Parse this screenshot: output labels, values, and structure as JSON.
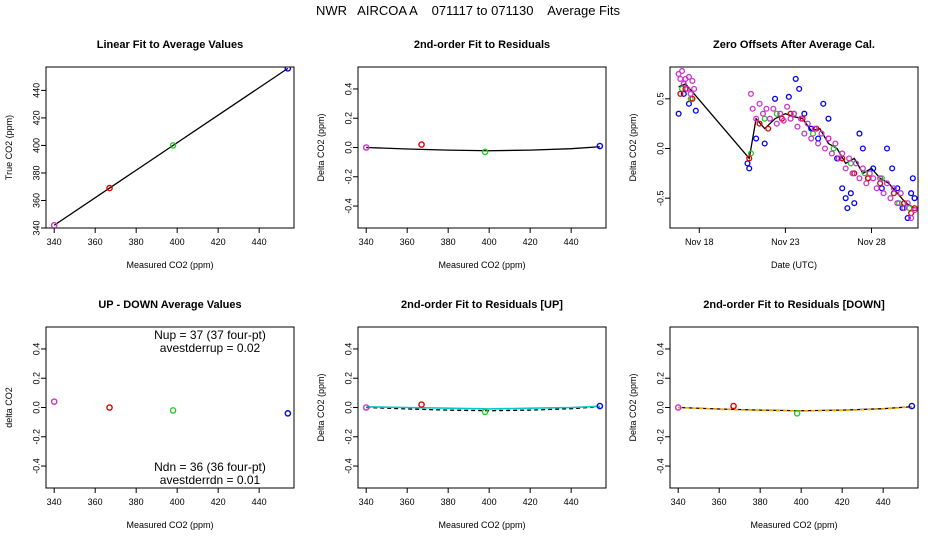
{
  "title": "NWR   AIRCOA A    071117 to 071130    Average Fits",
  "colors": {
    "purple": "#cc33cc",
    "red": "#dd0000",
    "green": "#22cc22",
    "blue": "#0000ee",
    "cyan": "#00cccc",
    "orange": "#ffaa00",
    "black": "#000000"
  },
  "chart_data": [
    {
      "type": "scatter",
      "title": "Linear Fit to Average Values",
      "xlabel": "Measured CO2 (ppm)",
      "ylabel": "True CO2 (ppm)",
      "xlim": [
        336,
        457
      ],
      "ylim": [
        340,
        457
      ],
      "xticks": [
        340,
        360,
        380,
        400,
        420,
        440
      ],
      "yticks": [
        340,
        360,
        380,
        400,
        420,
        440
      ],
      "points": [
        {
          "x": 340,
          "y": 342,
          "color": "purple"
        },
        {
          "x": 367,
          "y": 369,
          "color": "red"
        },
        {
          "x": 398,
          "y": 400,
          "color": "green"
        },
        {
          "x": 454,
          "y": 456,
          "color": "blue"
        }
      ],
      "lines": [
        {
          "x": [
            340,
            454
          ],
          "y": [
            342,
            456
          ],
          "color": "black"
        }
      ]
    },
    {
      "type": "scatter",
      "title": "2nd-order Fit to Residuals",
      "xlabel": "Measured CO2 (ppm)",
      "ylabel": "Delta CO2 (ppm)",
      "xlim": [
        336,
        457
      ],
      "ylim": [
        -0.55,
        0.55
      ],
      "xticks": [
        340,
        360,
        380,
        400,
        420,
        440
      ],
      "yticks": [
        -0.4,
        -0.2,
        0.0,
        0.2,
        0.4
      ],
      "points": [
        {
          "x": 340,
          "y": 0.0,
          "color": "purple"
        },
        {
          "x": 367,
          "y": 0.02,
          "color": "red"
        },
        {
          "x": 398,
          "y": -0.03,
          "color": "green"
        },
        {
          "x": 454,
          "y": 0.01,
          "color": "blue"
        }
      ],
      "lines": [
        {
          "x": [
            340,
            360,
            380,
            400,
            420,
            440,
            454
          ],
          "y": [
            0.0,
            -0.01,
            -0.018,
            -0.022,
            -0.018,
            -0.008,
            0.005
          ],
          "color": "black"
        }
      ]
    },
    {
      "type": "scatter",
      "title": "Zero Offsets After Average Cal.",
      "xlabel": "Date (UTC)",
      "ylabel": "Delta CO2 (ppm)",
      "xlim": [
        16.3,
        30.7
      ],
      "ylim": [
        -0.8,
        0.82
      ],
      "xticks": [
        18,
        23,
        28
      ],
      "xticklabels": [
        "Nov 18",
        "Nov 23",
        "Nov 28"
      ],
      "yticks": [
        -0.5,
        0.0,
        0.5
      ],
      "series": [
        {
          "color": "blue",
          "points": [
            [
              16.8,
              0.35
            ],
            [
              17.1,
              0.55
            ],
            [
              17.4,
              0.45
            ],
            [
              17.8,
              0.38
            ],
            [
              20.8,
              -0.15
            ],
            [
              20.9,
              -0.2
            ],
            [
              21.3,
              0.1
            ],
            [
              21.8,
              0.05
            ],
            [
              22.4,
              0.5
            ],
            [
              23.2,
              0.52
            ],
            [
              23.6,
              0.7
            ],
            [
              23.8,
              0.6
            ],
            [
              24.1,
              0.35
            ],
            [
              24.5,
              0.2
            ],
            [
              24.9,
              0.1
            ],
            [
              25.2,
              0.45
            ],
            [
              25.5,
              0.3
            ],
            [
              26.0,
              -0.1
            ],
            [
              26.3,
              -0.4
            ],
            [
              26.5,
              -0.5
            ],
            [
              26.6,
              -0.6
            ],
            [
              26.8,
              -0.45
            ],
            [
              27.0,
              -0.55
            ],
            [
              27.3,
              0.15
            ],
            [
              27.5,
              0.0
            ],
            [
              27.8,
              -0.3
            ],
            [
              28.1,
              -0.2
            ],
            [
              28.6,
              -0.4
            ],
            [
              28.9,
              0.0
            ],
            [
              29.2,
              -0.2
            ],
            [
              29.5,
              -0.4
            ],
            [
              29.8,
              -0.6
            ],
            [
              30.1,
              -0.7
            ],
            [
              30.3,
              -0.45
            ],
            [
              30.4,
              -0.3
            ],
            [
              30.5,
              -0.5
            ]
          ]
        },
        {
          "color": "green",
          "points": [
            [
              17.0,
              0.6
            ],
            [
              17.5,
              0.5
            ],
            [
              21.0,
              -0.05
            ],
            [
              21.8,
              0.3
            ],
            [
              22.5,
              0.35
            ],
            [
              23.5,
              0.35
            ],
            [
              24.6,
              0.15
            ],
            [
              25.8,
              0.0
            ],
            [
              26.8,
              -0.15
            ],
            [
              27.6,
              -0.25
            ],
            [
              28.6,
              -0.3
            ],
            [
              29.6,
              -0.55
            ],
            [
              30.2,
              -0.6
            ]
          ]
        },
        {
          "color": "red",
          "points": [
            [
              16.9,
              0.55
            ],
            [
              17.2,
              0.6
            ],
            [
              17.6,
              0.5
            ],
            [
              20.9,
              -0.1
            ],
            [
              21.5,
              0.25
            ],
            [
              22.0,
              0.2
            ],
            [
              22.8,
              0.3
            ],
            [
              23.3,
              0.35
            ],
            [
              24.0,
              0.3
            ],
            [
              24.8,
              0.2
            ],
            [
              25.5,
              0.1
            ],
            [
              26.3,
              -0.1
            ],
            [
              27.0,
              -0.25
            ],
            [
              27.8,
              -0.3
            ],
            [
              28.5,
              -0.35
            ],
            [
              29.3,
              -0.45
            ],
            [
              29.9,
              -0.55
            ],
            [
              30.3,
              -0.65
            ],
            [
              30.5,
              -0.6
            ]
          ]
        },
        {
          "color": "purple",
          "points": [
            [
              16.8,
              0.75
            ],
            [
              16.9,
              0.7
            ],
            [
              17.0,
              0.78
            ],
            [
              17.1,
              0.65
            ],
            [
              17.2,
              0.7
            ],
            [
              17.3,
              0.6
            ],
            [
              17.4,
              0.72
            ],
            [
              17.5,
              0.55
            ],
            [
              17.6,
              0.68
            ],
            [
              17.7,
              0.6
            ],
            [
              21.0,
              0.55
            ],
            [
              21.1,
              0.4
            ],
            [
              21.3,
              0.3
            ],
            [
              21.5,
              0.45
            ],
            [
              21.7,
              0.35
            ],
            [
              21.9,
              0.4
            ],
            [
              22.1,
              0.3
            ],
            [
              22.3,
              0.4
            ],
            [
              22.5,
              0.25
            ],
            [
              22.7,
              0.35
            ],
            [
              22.9,
              0.28
            ],
            [
              23.1,
              0.42
            ],
            [
              23.3,
              0.3
            ],
            [
              23.5,
              0.35
            ],
            [
              23.7,
              0.22
            ],
            [
              23.9,
              0.3
            ],
            [
              24.1,
              0.15
            ],
            [
              24.3,
              0.25
            ],
            [
              24.5,
              0.1
            ],
            [
              24.7,
              0.2
            ],
            [
              24.9,
              0.05
            ],
            [
              25.1,
              0.15
            ],
            [
              25.3,
              0.0
            ],
            [
              25.5,
              0.1
            ],
            [
              25.7,
              -0.05
            ],
            [
              25.9,
              0.05
            ],
            [
              26.1,
              -0.1
            ],
            [
              26.3,
              -0.05
            ],
            [
              26.5,
              -0.2
            ],
            [
              26.7,
              -0.1
            ],
            [
              26.9,
              -0.25
            ],
            [
              27.1,
              -0.15
            ],
            [
              27.3,
              -0.3
            ],
            [
              27.5,
              -0.2
            ],
            [
              27.7,
              -0.35
            ],
            [
              27.9,
              -0.25
            ],
            [
              28.1,
              -0.3
            ],
            [
              28.3,
              -0.4
            ],
            [
              28.5,
              -0.3
            ],
            [
              28.7,
              -0.45
            ],
            [
              28.9,
              -0.35
            ],
            [
              29.1,
              -0.5
            ],
            [
              29.3,
              -0.4
            ],
            [
              29.5,
              -0.55
            ],
            [
              29.7,
              -0.45
            ],
            [
              29.9,
              -0.6
            ],
            [
              30.1,
              -0.55
            ],
            [
              30.3,
              -0.7
            ],
            [
              30.5,
              -0.62
            ]
          ]
        }
      ],
      "lines": [
        {
          "x": [
            16.8,
            17.2,
            17.7,
            20.9,
            21.3,
            21.8,
            22.4,
            23.0,
            23.5,
            24.0,
            24.5,
            25.0,
            25.5,
            26.0,
            26.5,
            27.0,
            27.5,
            28.0,
            28.5,
            29.0,
            29.5,
            30.0,
            30.5
          ],
          "y": [
            0.62,
            0.65,
            0.55,
            -0.1,
            0.3,
            0.2,
            0.3,
            0.35,
            0.32,
            0.3,
            0.18,
            0.2,
            0.05,
            0.0,
            -0.15,
            -0.1,
            -0.25,
            -0.2,
            -0.3,
            -0.35,
            -0.45,
            -0.55,
            -0.6
          ],
          "color": "black"
        }
      ]
    },
    {
      "type": "scatter",
      "title": "UP - DOWN Average Values",
      "xlabel": "Measured CO2 (ppm)",
      "ylabel": "delta CO2",
      "xlim": [
        336,
        457
      ],
      "ylim": [
        -0.55,
        0.55
      ],
      "xticks": [
        340,
        360,
        380,
        400,
        420,
        440
      ],
      "yticks": [
        -0.4,
        -0.2,
        0.0,
        0.2,
        0.4
      ],
      "points": [
        {
          "x": 340,
          "y": 0.04,
          "color": "purple"
        },
        {
          "x": 367,
          "y": 0.0,
          "color": "red"
        },
        {
          "x": 398,
          "y": -0.02,
          "color": "green"
        },
        {
          "x": 454,
          "y": -0.04,
          "color": "blue"
        }
      ],
      "annotations": {
        "top1": "Nup = 37 (37 four-pt)",
        "top2": "avestderrup =  0.02",
        "bottom1": "Ndn = 36 (36 four-pt)",
        "bottom2": "avestderrdn =  0.01"
      }
    },
    {
      "type": "scatter",
      "title": "2nd-order Fit to Residuals [UP]",
      "xlabel": "Measured CO2 (ppm)",
      "ylabel": "Delta CO2 (ppm)",
      "xlim": [
        336,
        457
      ],
      "ylim": [
        -0.55,
        0.55
      ],
      "xticks": [
        340,
        360,
        380,
        400,
        420,
        440
      ],
      "yticks": [
        -0.4,
        -0.2,
        0.0,
        0.2,
        0.4
      ],
      "points": [
        {
          "x": 340,
          "y": 0.0,
          "color": "purple"
        },
        {
          "x": 367,
          "y": 0.02,
          "color": "red"
        },
        {
          "x": 398,
          "y": -0.03,
          "color": "green"
        },
        {
          "x": 454,
          "y": 0.01,
          "color": "blue"
        }
      ],
      "lines": [
        {
          "x": [
            340,
            360,
            380,
            400,
            420,
            440,
            454
          ],
          "y": [
            0.0,
            -0.01,
            -0.018,
            -0.022,
            -0.018,
            -0.008,
            0.005
          ],
          "color": "black",
          "dash": true
        },
        {
          "x": [
            340,
            360,
            380,
            400,
            420,
            440,
            454
          ],
          "y": [
            0.005,
            0.0,
            -0.005,
            -0.01,
            -0.005,
            0.0,
            0.008
          ],
          "color": "cyan"
        }
      ]
    },
    {
      "type": "scatter",
      "title": "2nd-order Fit to Residuals [DOWN]",
      "xlabel": "Measured CO2 (ppm)",
      "ylabel": "Delta CO2 (ppm)",
      "xlim": [
        336,
        457
      ],
      "ylim": [
        -0.55,
        0.55
      ],
      "xticks": [
        340,
        360,
        380,
        400,
        420,
        440
      ],
      "yticks": [
        -0.4,
        -0.2,
        0.0,
        0.2,
        0.4
      ],
      "points": [
        {
          "x": 340,
          "y": 0.0,
          "color": "purple"
        },
        {
          "x": 367,
          "y": 0.01,
          "color": "red"
        },
        {
          "x": 398,
          "y": -0.04,
          "color": "green"
        },
        {
          "x": 454,
          "y": 0.01,
          "color": "blue"
        }
      ],
      "lines": [
        {
          "x": [
            340,
            360,
            380,
            400,
            420,
            440,
            454
          ],
          "y": [
            0.0,
            -0.01,
            -0.018,
            -0.022,
            -0.018,
            -0.008,
            0.005
          ],
          "color": "black"
        },
        {
          "x": [
            340,
            360,
            380,
            400,
            420,
            440,
            454
          ],
          "y": [
            0.0,
            -0.012,
            -0.02,
            -0.024,
            -0.02,
            -0.01,
            0.004
          ],
          "color": "orange",
          "dash": true
        }
      ]
    }
  ]
}
